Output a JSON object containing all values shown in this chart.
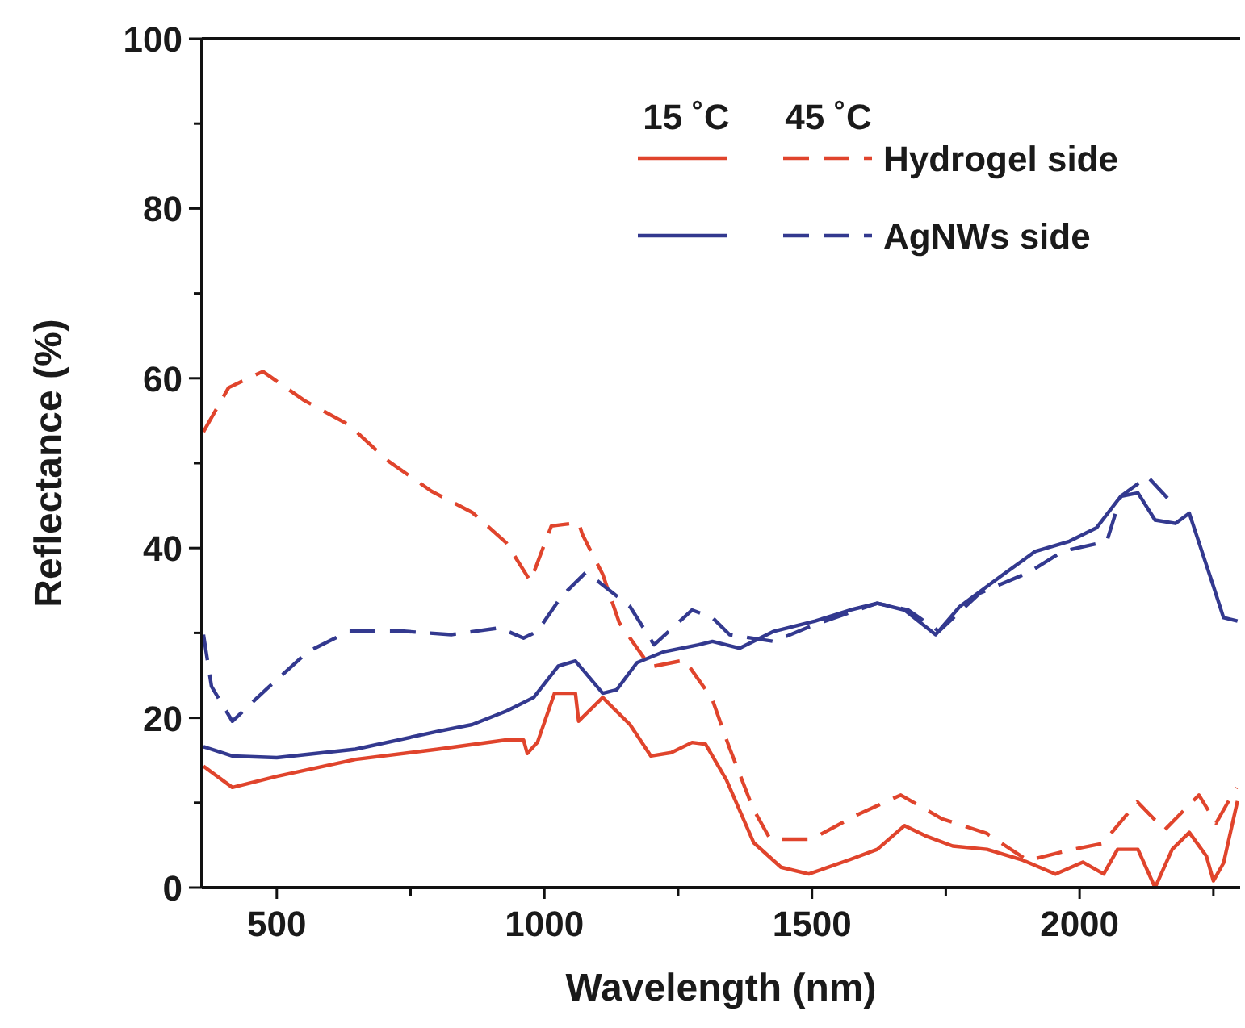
{
  "chart_data": {
    "type": "line",
    "xlabel": "Wavelength (nm)",
    "ylabel": "Reflectance (%)",
    "xlim": [
      360,
      2300
    ],
    "xticks": [
      500,
      {
        "value": 750,
        "label": null
      },
      1000,
      {
        "value": 1250,
        "label": null
      },
      1500,
      {
        "value": 1750,
        "label": null
      },
      2000,
      {
        "value": 2250,
        "label": null
      }
    ],
    "ylim": [
      0,
      100
    ],
    "yticks": [
      0,
      {
        "value": 10,
        "label": null
      },
      20,
      {
        "value": 30,
        "label": null
      },
      40,
      {
        "value": 50,
        "label": null
      },
      60,
      {
        "value": 70,
        "label": null
      },
      80,
      {
        "value": 90,
        "label": null
      },
      100
    ],
    "grid": false,
    "legend": "top right",
    "marker": "none",
    "annotations": [
      "15 ˚C",
      "45 ˚C"
    ],
    "series": [
      {
        "name": "Hydrogel side",
        "color": "#e0442c",
        "line_style": "solid",
        "x": [
          363,
          417,
          500,
          647,
          801,
          929,
          961,
          968,
          987,
          1019,
          1058,
          1064,
          1109,
          1160,
          1199,
          1237,
          1276,
          1301,
          1340,
          1391,
          1442,
          1494,
          1571,
          1622,
          1673,
          1712,
          1763,
          1827,
          1891,
          1955,
          2006,
          2045,
          2071,
          2109,
          2141,
          2173,
          2205,
          2237,
          2250,
          2269,
          2295
        ],
        "values": [
          14.3,
          11.8,
          13.1,
          15.1,
          16.3,
          17.4,
          17.4,
          15.8,
          17.1,
          22.9,
          22.9,
          19.6,
          22.4,
          19.2,
          15.5,
          15.9,
          17.1,
          16.9,
          12.7,
          5.3,
          2.4,
          1.6,
          3.3,
          4.5,
          7.3,
          6.1,
          4.9,
          4.5,
          3.3,
          1.6,
          3.0,
          1.6,
          4.5,
          4.5,
          0,
          4.5,
          6.5,
          3.7,
          0.8,
          2.9,
          10.2
        ]
      },
      {
        "name": "AgNWs side",
        "color": "#33398f",
        "line_style": "solid",
        "x": [
          363,
          417,
          500,
          647,
          801,
          865,
          929,
          980,
          1026,
          1058,
          1109,
          1135,
          1173,
          1224,
          1288,
          1314,
          1365,
          1429,
          1506,
          1571,
          1622,
          1673,
          1731,
          1776,
          1853,
          1917,
          1981,
          2032,
          2077,
          2109,
          2141,
          2179,
          2205,
          2250,
          2269,
          2295
        ],
        "values": [
          16.6,
          15.5,
          15.3,
          16.3,
          18.4,
          19.2,
          20.8,
          22.4,
          26.1,
          26.7,
          22.9,
          23.3,
          26.5,
          27.8,
          28.6,
          29.0,
          28.2,
          30.2,
          31.4,
          32.7,
          33.5,
          32.7,
          29.8,
          33.1,
          36.7,
          39.6,
          40.8,
          42.4,
          46.1,
          46.5,
          43.3,
          42.9,
          44.1,
          35.5,
          31.8,
          31.4
        ]
      },
      {
        "color": "#e0442c",
        "line_style": "dashed",
        "x": [
          363,
          410,
          474,
          551,
          635,
          705,
          789,
          865,
          929,
          974,
          1013,
          1064,
          1071,
          1109,
          1140,
          1198,
          1262,
          1313,
          1345,
          1390,
          1422,
          1499,
          1582,
          1666,
          1743,
          1826,
          1903,
          1980,
          2043,
          2108,
          2159,
          2223,
          2255,
          2293
        ],
        "values": [
          53.7,
          58.9,
          60.8,
          57.4,
          54.5,
          50.4,
          46.7,
          44.2,
          40.6,
          36.1,
          42.6,
          43.0,
          41.6,
          36.9,
          31.2,
          26.0,
          26.8,
          22.3,
          16.6,
          9.3,
          5.7,
          5.7,
          8.5,
          10.9,
          8.1,
          6.4,
          3.2,
          4.4,
          5.2,
          10.1,
          6.8,
          10.9,
          7.6,
          11.8
        ]
      },
      {
        "color": "#33398f",
        "line_style": "dashed",
        "x": [
          363,
          378,
          417,
          481,
          558,
          635,
          737,
          826,
          916,
          961,
          987,
          1032,
          1077,
          1096,
          1160,
          1205,
          1276,
          1314,
          1346,
          1429,
          1506,
          1622,
          1680,
          1737,
          1814,
          1904,
          1968,
          2051,
          2077,
          2127,
          2173
        ],
        "values": [
          29.8,
          23.7,
          19.6,
          23.4,
          27.8,
          30.2,
          30.2,
          29.8,
          30.6,
          29.4,
          30.2,
          34.3,
          37.1,
          36.3,
          33.1,
          28.6,
          32.7,
          31.8,
          29.8,
          29.0,
          31.0,
          33.5,
          32.7,
          30.2,
          34.7,
          37.1,
          39.6,
          40.8,
          46.1,
          48.4,
          45.3
        ]
      }
    ]
  }
}
